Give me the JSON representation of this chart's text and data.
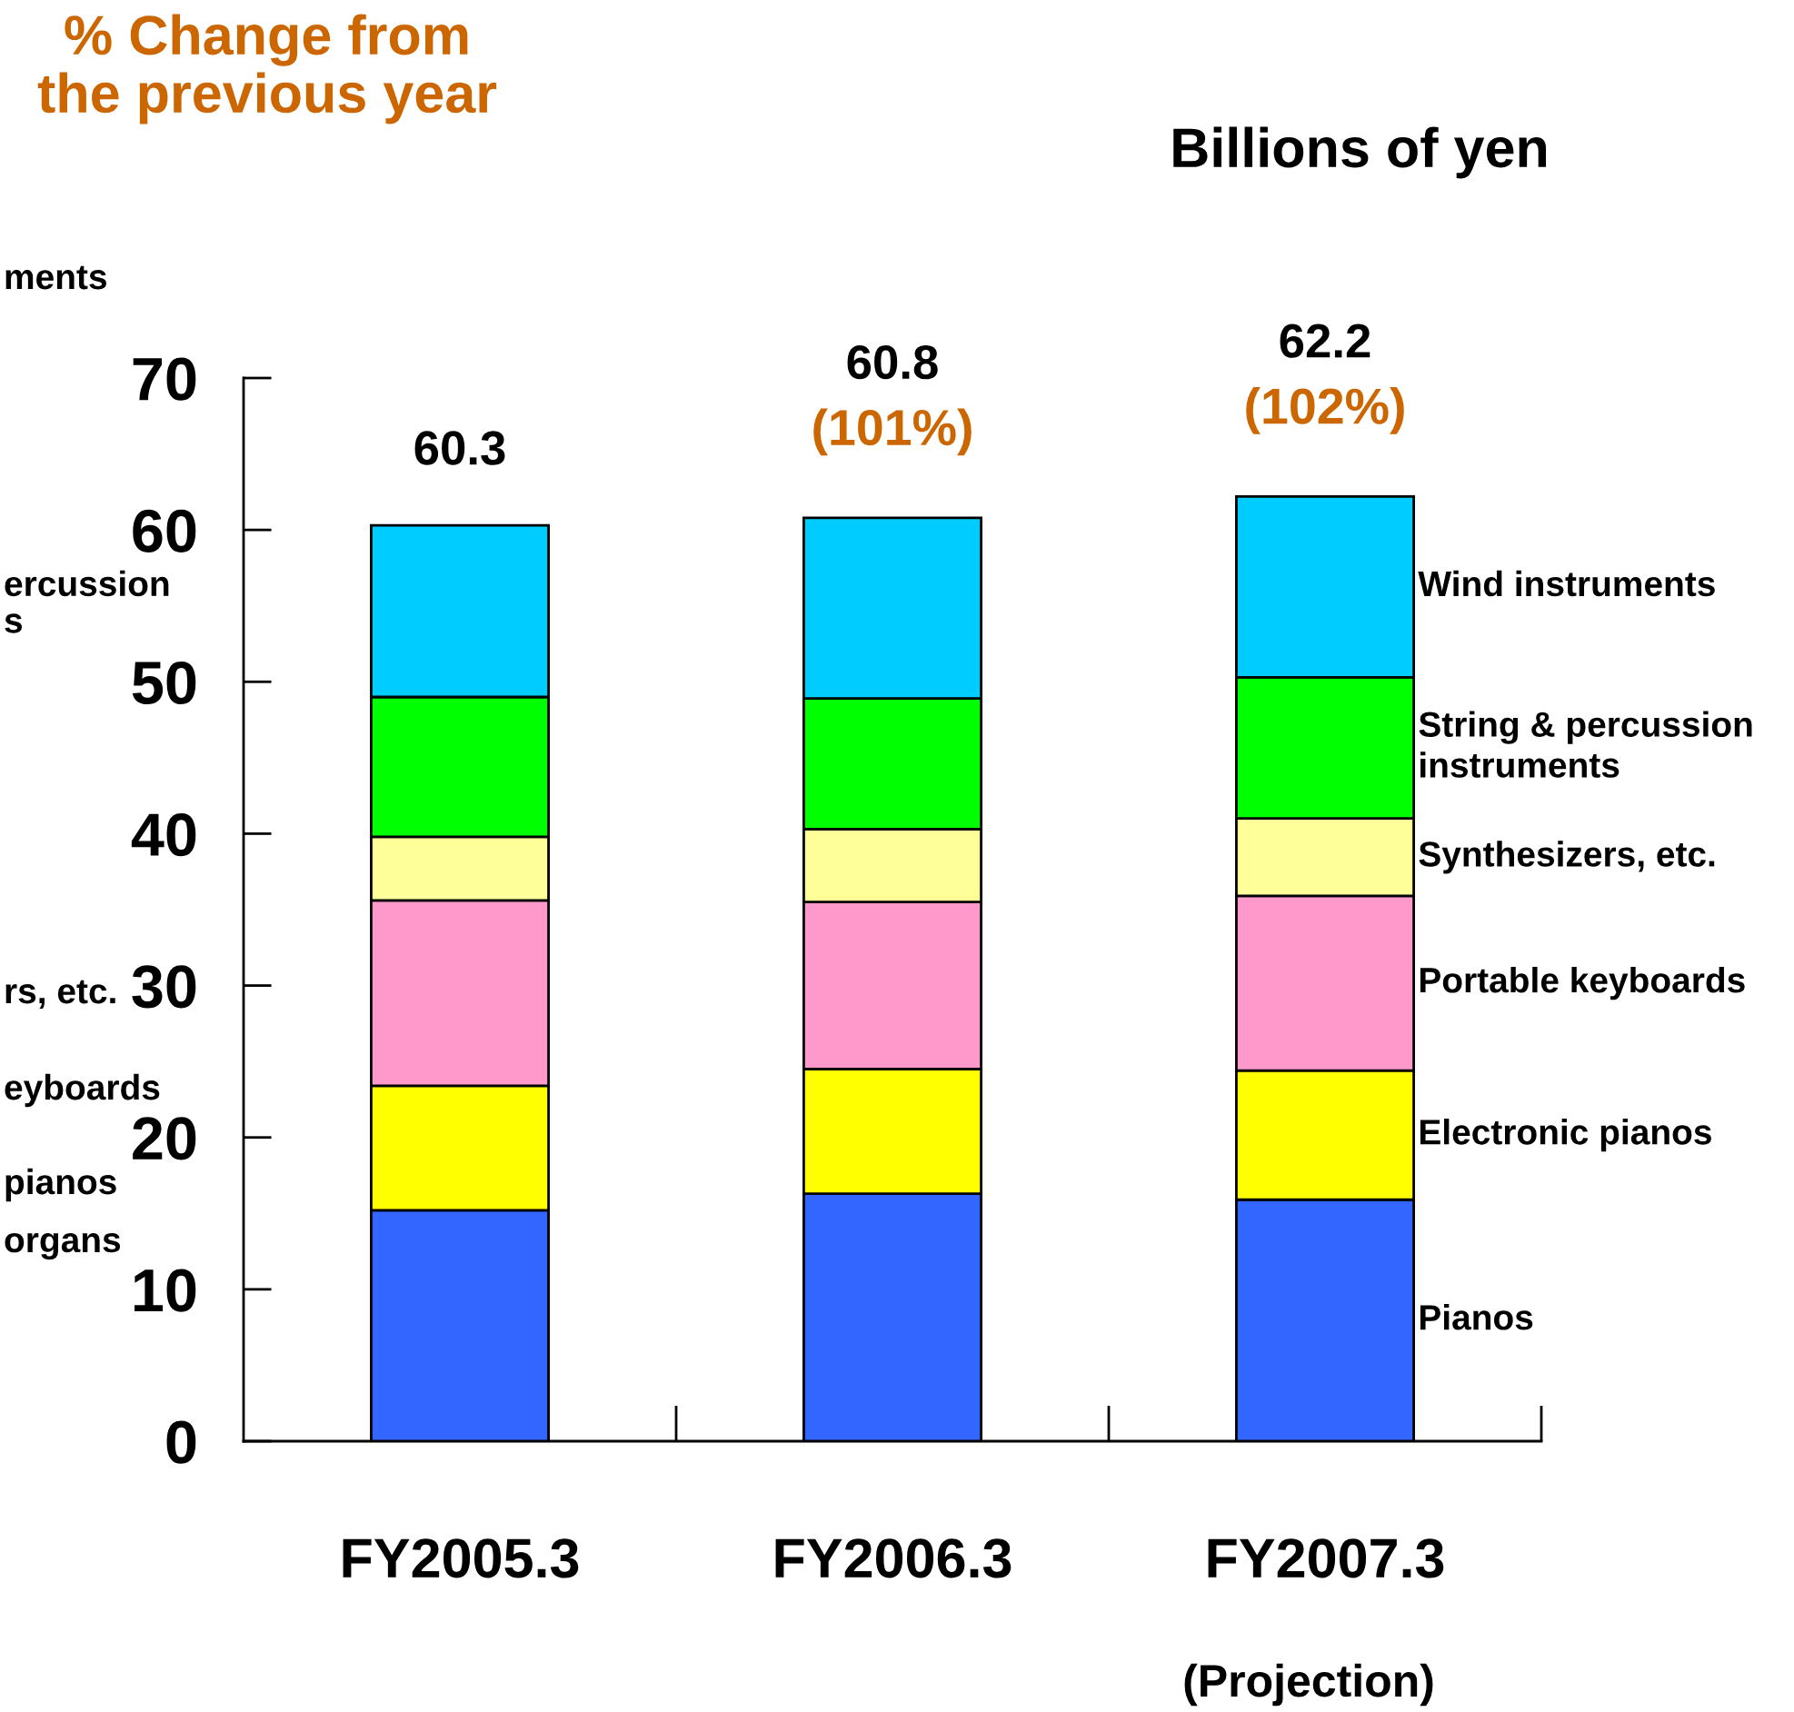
{
  "chart_data": {
    "type": "bar",
    "stacked": true,
    "ylabel": "Billions of yen",
    "categories": [
      "FY2005.3",
      "FY2006.3",
      "FY2007.3"
    ],
    "series": [
      {
        "name": "Pianos",
        "color": "#3366ff",
        "values": [
          15.2,
          16.3,
          15.9
        ]
      },
      {
        "name": "Electronic pianos",
        "color": "#ffff00",
        "values": [
          8.2,
          8.2,
          8.5
        ]
      },
      {
        "name": "Portable keyboards",
        "color": "#ff99cc",
        "values": [
          12.2,
          11.0,
          11.5
        ]
      },
      {
        "name": "Synthesizers, etc.",
        "color": "#ffff99",
        "values": [
          4.2,
          4.8,
          5.1
        ]
      },
      {
        "name": "String & percussion\ninstruments",
        "color": "#00ff00",
        "values": [
          9.2,
          8.6,
          9.3
        ]
      },
      {
        "name": "Wind instruments",
        "color": "#00ccff",
        "values": [
          11.3,
          11.9,
          11.9
        ]
      }
    ],
    "ylim": [
      0,
      70
    ],
    "yticks": [
      0,
      10,
      20,
      30,
      40,
      50,
      60,
      70
    ],
    "totals": [
      "60.3",
      "60.8",
      "62.2"
    ],
    "annotations": [
      "% Change from\nthe previous year",
      "ments",
      "ercussion\ns",
      "rs, etc.",
      "eyboards",
      "pianos",
      "organs",
      "(Projection)",
      {
        "text": "(101%)",
        "x": "FY2006.3",
        "y": 60.8
      },
      {
        "text": "(102%)",
        "x": "FY2007.3",
        "y": 62.2
      }
    ]
  }
}
